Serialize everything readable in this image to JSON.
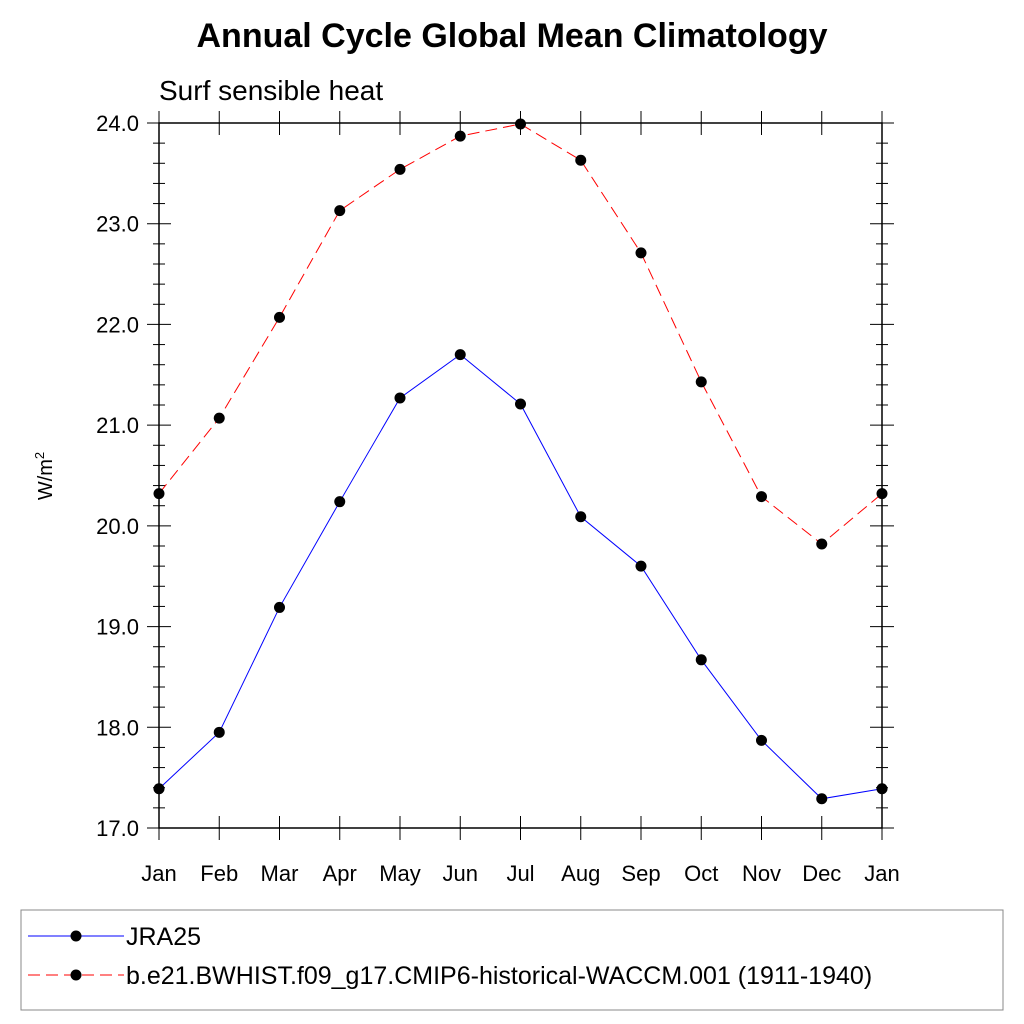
{
  "chart_data": {
    "type": "line",
    "title": "Annual Cycle Global Mean Climatology",
    "subtitle": "Surf sensible heat",
    "ylabel_base": "W/m",
    "ylabel_sup": "2",
    "xlabel": "",
    "categories": [
      "Jan",
      "Feb",
      "Mar",
      "Apr",
      "May",
      "Jun",
      "Jul",
      "Aug",
      "Sep",
      "Oct",
      "Nov",
      "Dec",
      "Jan"
    ],
    "ylim": [
      17.0,
      24.0
    ],
    "yticks": [
      17.0,
      18.0,
      19.0,
      20.0,
      21.0,
      22.0,
      23.0,
      24.0
    ],
    "ytick_labels": [
      "17.0",
      "18.0",
      "19.0",
      "20.0",
      "21.0",
      "22.0",
      "23.0",
      "24.0"
    ],
    "grid": false,
    "legend_position": "bottom",
    "series": [
      {
        "name": "JRA25",
        "color": "#0000ff",
        "dash": "solid",
        "values": [
          17.39,
          17.95,
          19.19,
          20.24,
          21.27,
          21.7,
          21.21,
          20.09,
          19.6,
          18.67,
          17.87,
          17.29,
          17.39
        ]
      },
      {
        "name": "b.e21.BWHIST.f09_g17.CMIP6-historical-WACCM.001 (1911-1940)",
        "color": "#ff0000",
        "dash": "dashed",
        "values": [
          20.32,
          21.07,
          22.07,
          23.13,
          23.54,
          23.87,
          23.99,
          23.63,
          22.71,
          21.43,
          20.29,
          19.82,
          20.32
        ]
      }
    ]
  }
}
